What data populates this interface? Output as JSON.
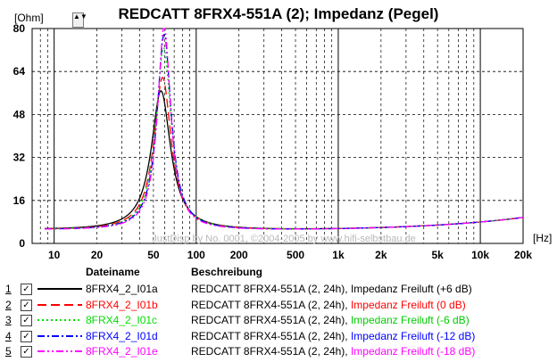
{
  "title": "REDCATT 8FRX4-551A (2); Impedanz (Pegel)",
  "unit_label": "[Ohm]",
  "spin_label": "▲▼",
  "x_unit_label": "[Hz]",
  "watermark": "JustDisp by No. 0001, ©2004-2005 by www.hifi-selbstbau.de",
  "legend": {
    "col_file": "Dateiname",
    "col_desc": "Beschreibung",
    "check": "✓",
    "rows": [
      {
        "index": "1",
        "file": "8FRX4_2_I01a",
        "desc_black": "REDCATT 8FRX4-551A (2, 24h), Impedanz Freiluft",
        "desc_tail": " (+6 dB)",
        "color": "#000000",
        "tail_color": "#000000",
        "dash": ""
      },
      {
        "index": "2",
        "file": "8FRX4_2_I01b",
        "desc_black": "REDCATT 8FRX4-551A (2, 24h), ",
        "desc_tail": "Impedanz Freiluft (0 dB)",
        "color": "#ff0000",
        "tail_color": "#ff0000",
        "dash": "10,5"
      },
      {
        "index": "3",
        "file": "8FRX4_2_I01c",
        "desc_black": "REDCATT 8FRX4-551A (2, 24h), ",
        "desc_tail": "Impedanz Freiluft (-6 dB)",
        "color": "#00dd00",
        "tail_color": "#00cc00",
        "dash": "2,3"
      },
      {
        "index": "4",
        "file": "8FRX4_2_I01d",
        "desc_black": "REDCATT 8FRX4-551A (2, 24h), ",
        "desc_tail": "Impedanz Freiluft (-12 dB)",
        "color": "#0000ff",
        "tail_color": "#0000ff",
        "dash": "8,3,2,3"
      },
      {
        "index": "5",
        "file": "8FRX4_2_I01e",
        "desc_black": "REDCATT 8FRX4-551A (2, 24h), ",
        "desc_tail": "Impedanz Freiluft (-18 dB)",
        "color": "#ff00ff",
        "tail_color": "#ff00ff",
        "dash": "8,3,2,3,2,3"
      }
    ]
  },
  "chart_data": {
    "type": "line",
    "title": "REDCATT 8FRX4-551A (2); Impedanz (Pegel)",
    "ylabel": "[Ohm]",
    "xlabel": "[Hz]",
    "x_scale": "log",
    "xlim": [
      7,
      20000
    ],
    "ylim": [
      0,
      80
    ],
    "y_ticks": [
      0,
      16,
      32,
      48,
      64,
      80
    ],
    "x_ticks": [
      10,
      20,
      50,
      100,
      200,
      500,
      1000,
      2000,
      5000,
      10000,
      20000
    ],
    "x_tick_labels": [
      "10",
      "20",
      "50",
      "100",
      "200",
      "500",
      "1k",
      "2k",
      "5k",
      "10k",
      "20k"
    ],
    "grid": true,
    "series": [
      {
        "name": "8FRX4_2_I01a",
        "color": "#000000",
        "fr": 56.5,
        "peak": 56,
        "w": 0.19
      },
      {
        "name": "8FRX4_2_I01b",
        "color": "#ff0000",
        "fr": 58,
        "peak": 61,
        "w": 0.17
      },
      {
        "name": "8FRX4_2_I01c",
        "color": "#00dd00",
        "fr": 59,
        "peak": 72,
        "w": 0.15
      },
      {
        "name": "8FRX4_2_I01d",
        "color": "#0000ff",
        "fr": 59.5,
        "peak": 77,
        "w": 0.14
      },
      {
        "name": "8FRX4_2_I01e",
        "color": "#ff00ff",
        "fr": 59.5,
        "peak": 80,
        "w": 0.13
      }
    ]
  }
}
